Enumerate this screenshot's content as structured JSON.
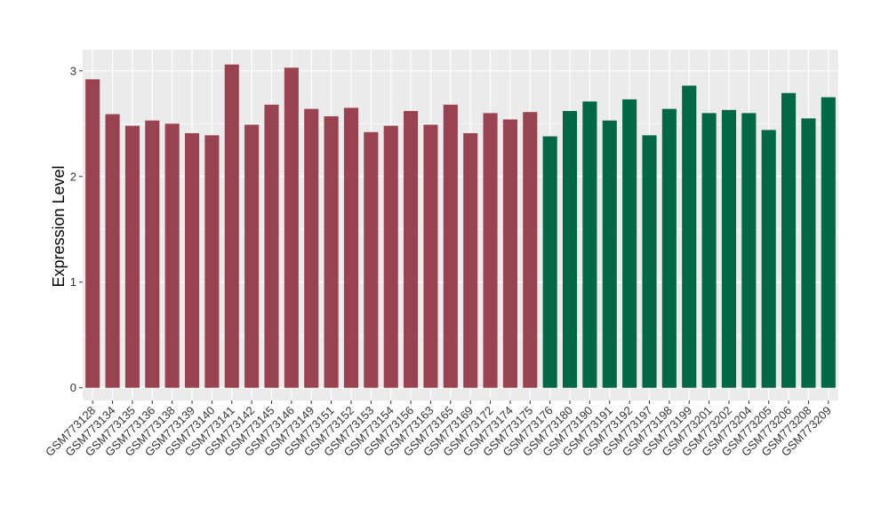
{
  "chart_data": {
    "type": "bar",
    "ylabel": "Expression Level",
    "xlabel": "",
    "ylim": [
      -0.12,
      3.2
    ],
    "yticks": [
      0,
      1,
      2,
      3
    ],
    "grid": true,
    "colors": {
      "group_1": "#9a4350",
      "group_2": "#016745",
      "panel": "#ebebeb",
      "grid": "#ffffff"
    },
    "categories": [
      "GSM773128",
      "GSM773134",
      "GSM773135",
      "GSM773136",
      "GSM773138",
      "GSM773139",
      "GSM773140",
      "GSM773141",
      "GSM773142",
      "GSM773145",
      "GSM773146",
      "GSM773149",
      "GSM773151",
      "GSM773152",
      "GSM773153",
      "GSM773154",
      "GSM773156",
      "GSM773163",
      "GSM773165",
      "GSM773169",
      "GSM773172",
      "GSM773174",
      "GSM773175",
      "GSM773176",
      "GSM773180",
      "GSM773190",
      "GSM773191",
      "GSM773192",
      "GSM773197",
      "GSM773198",
      "GSM773199",
      "GSM773201",
      "GSM773202",
      "GSM773204",
      "GSM773205",
      "GSM773206",
      "GSM773208",
      "GSM773209"
    ],
    "values": [
      2.92,
      2.59,
      2.48,
      2.53,
      2.5,
      2.41,
      2.39,
      3.06,
      2.49,
      2.68,
      3.03,
      2.64,
      2.57,
      2.65,
      2.42,
      2.48,
      2.62,
      2.49,
      2.68,
      2.41,
      2.6,
      2.54,
      2.61,
      2.38,
      2.62,
      2.71,
      2.53,
      2.73,
      2.39,
      2.64,
      2.86,
      2.6,
      2.63,
      2.6,
      2.44,
      2.79,
      2.55,
      2.75
    ],
    "groups": [
      1,
      1,
      1,
      1,
      1,
      1,
      1,
      1,
      1,
      1,
      1,
      1,
      1,
      1,
      1,
      1,
      1,
      1,
      1,
      1,
      1,
      1,
      1,
      2,
      2,
      2,
      2,
      2,
      2,
      2,
      2,
      2,
      2,
      2,
      2,
      2,
      2,
      2
    ]
  }
}
